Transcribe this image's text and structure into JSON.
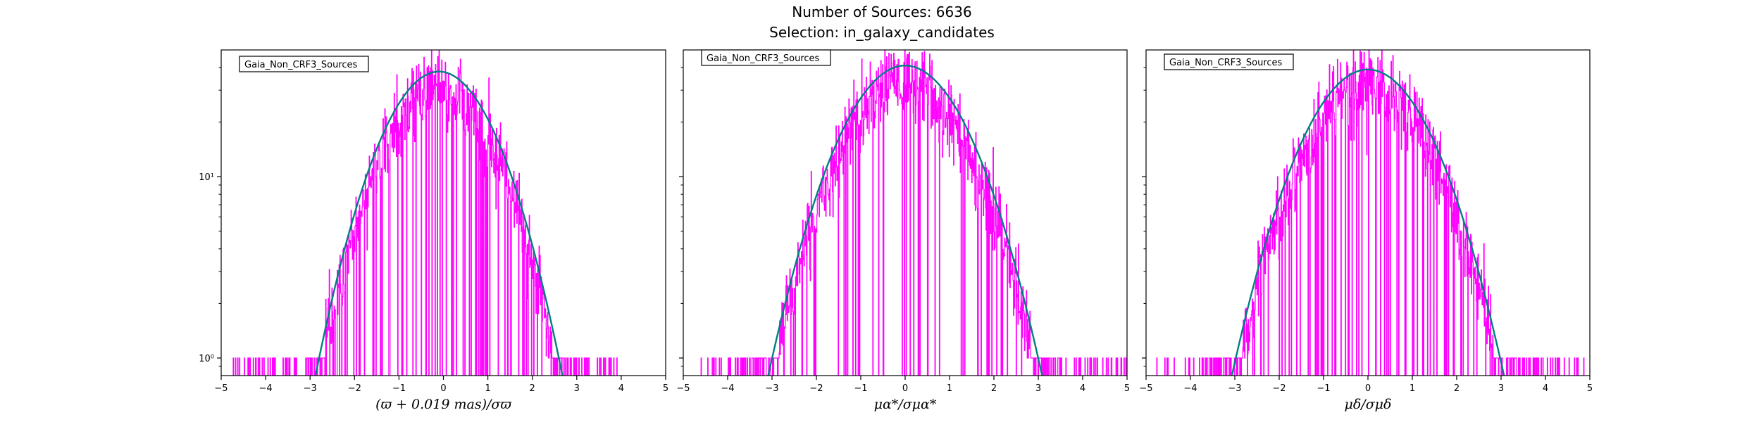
{
  "figure": {
    "title_line1": "Number of Sources: 6636",
    "title_line2": "Selection: in_galaxy_candidates"
  },
  "colors": {
    "histogram": "#ff00ff",
    "fit": "#008080",
    "axes": "#000000"
  },
  "chart_data": [
    {
      "type": "histogram",
      "xlabel": "(ϖ + 0.019 mas)/σϖ",
      "legend": "Gaia_Non_CRF3_Sources",
      "legend_placement": "top-left",
      "xlim": [
        -5,
        5
      ],
      "ylim": [
        0.8,
        50
      ],
      "yscale": "log",
      "xticks": [
        "−5",
        "−4",
        "−3",
        "−2",
        "−1",
        "0",
        "1",
        "2",
        "3",
        "4",
        "5"
      ],
      "yticks": [
        {
          "value": 1,
          "label": "10⁰"
        },
        {
          "value": 10,
          "label": "10¹"
        }
      ],
      "fit": {
        "amplitude": 38,
        "mean": -0.1,
        "sigma": 1.0
      },
      "noise": 0.25,
      "support": [
        -4.8,
        4.0
      ],
      "bins": 1000
    },
    {
      "type": "histogram",
      "xlabel": "μα*/σμα*",
      "legend": "Gaia_Non_CRF3_Sources",
      "legend_placement": "top-left",
      "xlim": [
        -5,
        5
      ],
      "ylim": [
        0.8,
        50
      ],
      "yscale": "log",
      "xticks": [
        "−5",
        "−4",
        "−3",
        "−2",
        "−1",
        "0",
        "1",
        "2",
        "3",
        "4",
        "5"
      ],
      "yticks": [
        {
          "value": 1,
          "label": "10⁰"
        },
        {
          "value": 10,
          "label": "10¹"
        }
      ],
      "fit": {
        "amplitude": 41,
        "mean": 0.0,
        "sigma": 1.1
      },
      "noise": 0.25,
      "support": [
        -4.6,
        5.0
      ],
      "bins": 1000
    },
    {
      "type": "histogram",
      "xlabel": "μδ/σμδ",
      "legend": "Gaia_Non_CRF3_Sources",
      "legend_placement": "top-left",
      "xlim": [
        -5,
        5
      ],
      "ylim": [
        0.8,
        50
      ],
      "yscale": "log",
      "xticks": [
        "−5",
        "−4",
        "−3",
        "−2",
        "−1",
        "0",
        "1",
        "2",
        "3",
        "4",
        "5"
      ],
      "yticks": [
        {
          "value": 1,
          "label": "10⁰"
        },
        {
          "value": 10,
          "label": "10¹"
        }
      ],
      "fit": {
        "amplitude": 39,
        "mean": 0.0,
        "sigma": 1.1
      },
      "noise": 0.25,
      "support": [
        -4.8,
        4.9
      ],
      "bins": 1000
    }
  ]
}
